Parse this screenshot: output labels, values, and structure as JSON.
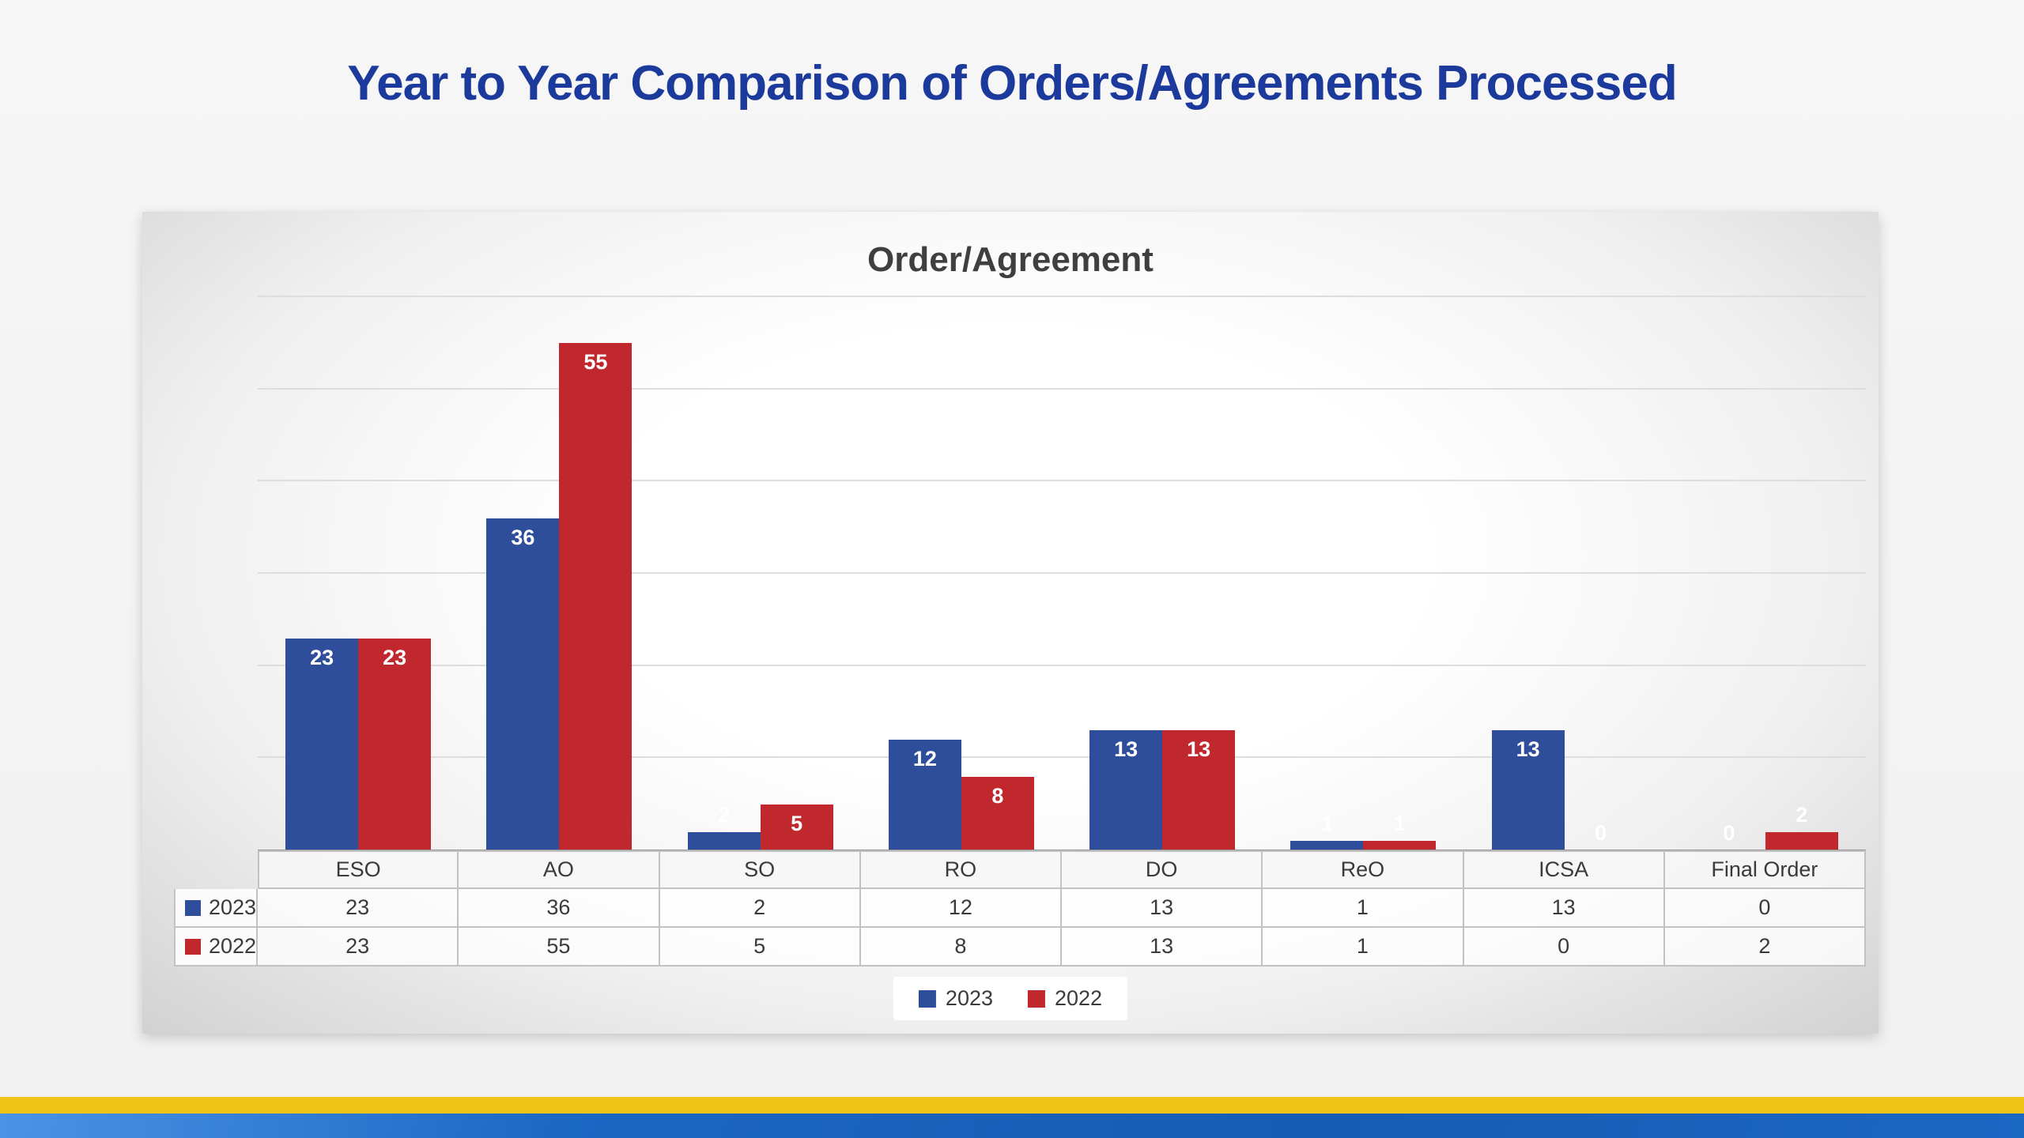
{
  "page": {
    "title": "Year to Year Comparison of Orders/Agreements Processed"
  },
  "chart_data": {
    "type": "bar",
    "title": "Order/Agreement",
    "categories": [
      "ESO",
      "AO",
      "SO",
      "RO",
      "DO",
      "ReO",
      "ICSA",
      "Final Order"
    ],
    "series": [
      {
        "name": "2023",
        "color": "#2e4d9b",
        "values": [
          23,
          36,
          2,
          12,
          13,
          1,
          13,
          0
        ]
      },
      {
        "name": "2022",
        "color": "#c1282e",
        "values": [
          23,
          55,
          5,
          8,
          13,
          1,
          0,
          2
        ]
      }
    ],
    "ylim": [
      0,
      60
    ],
    "grid_step": 10,
    "grid": "on",
    "legend_position": "bottom",
    "data_table_shown": true,
    "xlabel": "",
    "ylabel": ""
  },
  "colors": {
    "title_blue": "#1b3a9c",
    "chart_title_gray": "#3f3f3f",
    "footer_yellow": "#f0c419",
    "footer_blue": "#1b67c4"
  }
}
